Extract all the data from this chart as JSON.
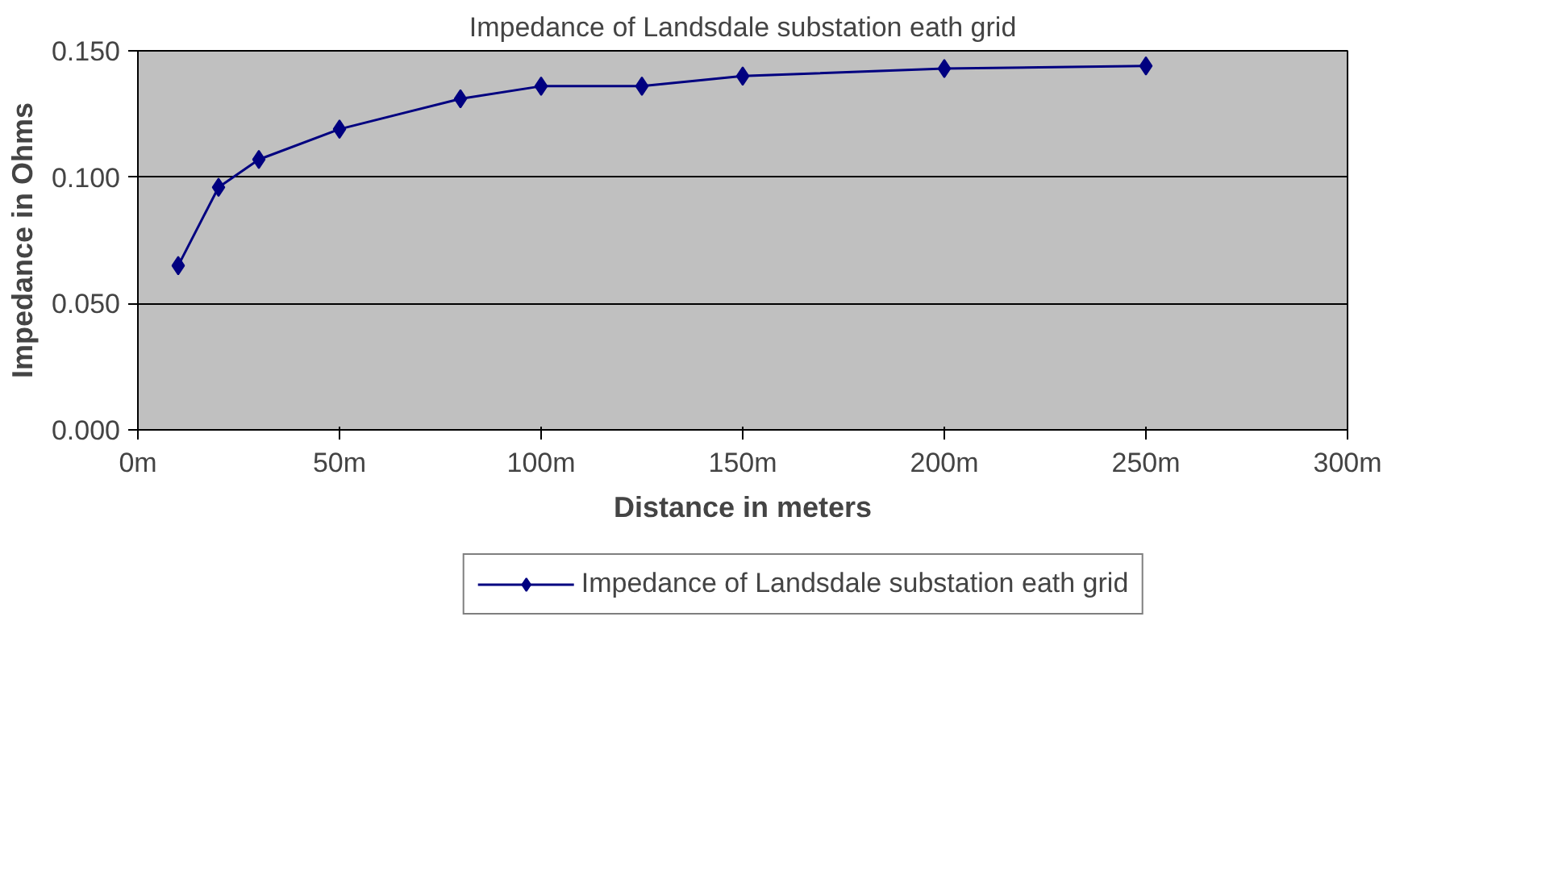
{
  "chart_data": {
    "type": "line",
    "title": "Impedance of Landsdale substation eath grid",
    "xlabel": "Distance in meters",
    "ylabel": "Impedance in Ohms",
    "x": [
      10,
      20,
      30,
      50,
      80,
      100,
      125,
      150,
      200,
      250
    ],
    "series": [
      {
        "name": "Impedance of Landsdale substation eath grid",
        "color": "#000080",
        "values": [
          0.065,
          0.096,
          0.107,
          0.119,
          0.131,
          0.136,
          0.136,
          0.14,
          0.143,
          0.144
        ]
      }
    ],
    "xlim": [
      0,
      300
    ],
    "ylim": [
      0,
      0.15
    ],
    "xticks": [
      {
        "value": 0,
        "label": "0m"
      },
      {
        "value": 50,
        "label": "50m"
      },
      {
        "value": 100,
        "label": "100m"
      },
      {
        "value": 150,
        "label": "150m"
      },
      {
        "value": 200,
        "label": "200m"
      },
      {
        "value": 250,
        "label": "250m"
      },
      {
        "value": 300,
        "label": "300m"
      }
    ],
    "yticks": [
      {
        "value": 0,
        "label": "0.000"
      },
      {
        "value": 0.05,
        "label": "0.050"
      },
      {
        "value": 0.1,
        "label": "0.100"
      },
      {
        "value": 0.15,
        "label": "0.150"
      }
    ],
    "grid": "y",
    "legend": "bottom",
    "marker": "diamond",
    "line_style": "solid"
  }
}
